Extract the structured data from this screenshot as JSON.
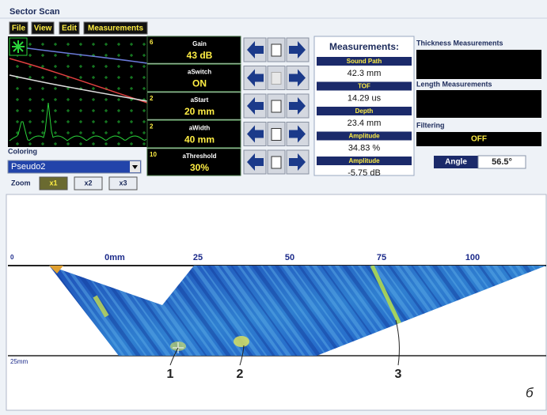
{
  "header": {
    "title": "Sector Scan"
  },
  "menu": [
    "File",
    "View",
    "Edit",
    "Measurements"
  ],
  "params": {
    "rows": [
      {
        "index": "6",
        "label": "Gain",
        "value": "43 dB"
      },
      {
        "label": "aSwitch",
        "value": "ON"
      },
      {
        "index": "2",
        "label": "aStart",
        "value": "20 mm"
      },
      {
        "index": "2",
        "label": "aWidth",
        "value": "40 mm"
      },
      {
        "index": "10",
        "label": "aThreshold",
        "value": "30%"
      }
    ]
  },
  "measurements": {
    "title": "Measurements:",
    "items": [
      {
        "label": "Sound Path",
        "value": "42.3 mm"
      },
      {
        "label": "TOF",
        "value": "14.29 us"
      },
      {
        "label": "Depth",
        "value": "23.4 mm"
      },
      {
        "label": "Amplitude",
        "value": "34.83 %"
      },
      {
        "label": "Amplitude",
        "value": "-5.75 dB"
      }
    ]
  },
  "side": {
    "thickness": "Thickness Measurements",
    "length": "Length Measurements",
    "filtering": "Filtering",
    "filtering_value": "OFF",
    "angle_label": "Angle",
    "angle_value": "56.5°"
  },
  "coloring": {
    "label": "Coloring",
    "value": "Pseudo2"
  },
  "zoom": {
    "label": "Zoom",
    "buttons": [
      "x1",
      "x2",
      "x3"
    ]
  },
  "ruler": {
    "labels": [
      "0",
      "0mm",
      "25",
      "50",
      "75",
      "100"
    ],
    "depth_label": "25mm"
  },
  "callouts": [
    "1",
    "2",
    "3"
  ],
  "figure_letter": "б"
}
